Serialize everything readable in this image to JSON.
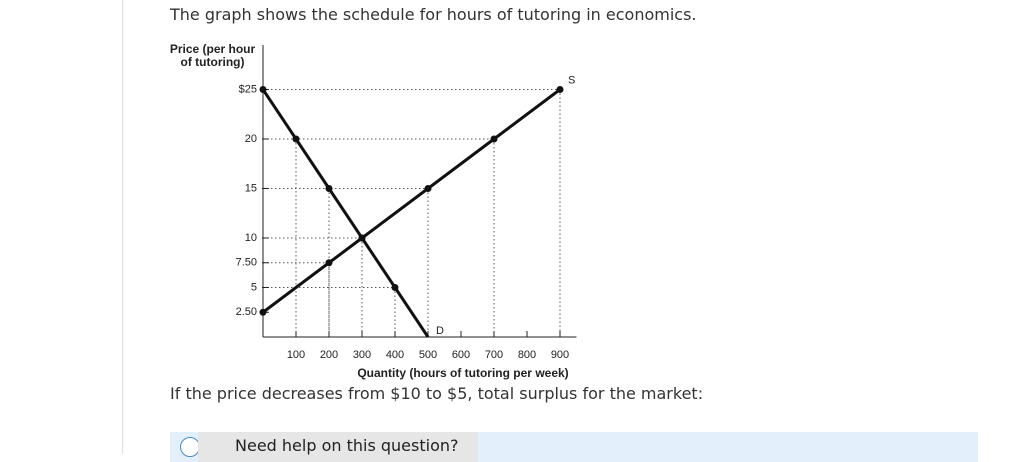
{
  "question": "The graph shows the schedule for hours of tutoring in economics.",
  "chart_data": {
    "type": "line",
    "ylabel": "Price (per hour of tutoring)",
    "xlabel": "Quantity (hours of tutoring per week)",
    "xlim": [
      0,
      950
    ],
    "ylim": [
      0,
      29.5
    ],
    "xticks": [
      100,
      200,
      300,
      400,
      500,
      600,
      700,
      800,
      900
    ],
    "yticks": [
      {
        "value": 2.5,
        "label": "2.50"
      },
      5,
      {
        "value": 7.5,
        "label": "7.50"
      },
      10,
      15,
      20,
      {
        "value": 25,
        "label": "$25"
      }
    ],
    "series": [
      {
        "name": "D",
        "color": "#111111",
        "x": [
          0,
          100,
          200,
          300,
          400,
          500
        ],
        "values": [
          25,
          20,
          15,
          10,
          5,
          0
        ]
      },
      {
        "name": "S",
        "color": "#111111",
        "x": [
          0,
          200,
          300,
          500,
          700,
          900
        ],
        "values": [
          2.5,
          7.5,
          10,
          15,
          20,
          25
        ]
      }
    ]
  },
  "follow_up": "If the price decreases from $10 to $5, total surplus for the market:",
  "help_button": "Need help on this question?"
}
